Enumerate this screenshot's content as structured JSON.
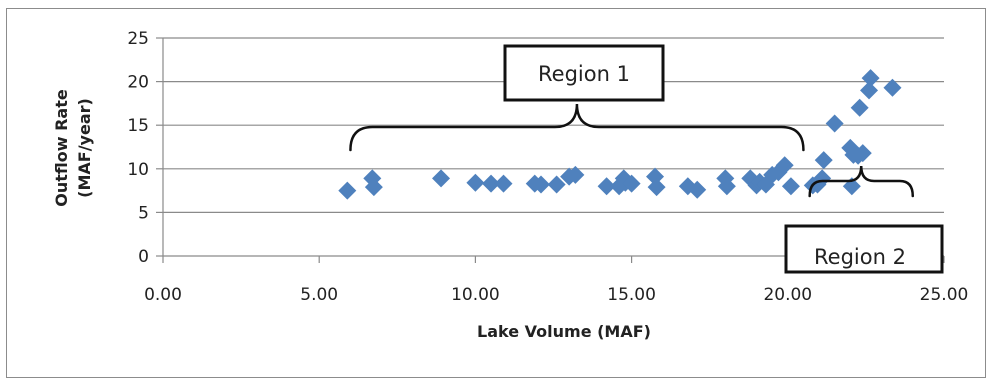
{
  "chart_data": {
    "type": "scatter",
    "title": "",
    "xlabel": "Lake Volume (MAF)",
    "ylabel_lines": [
      "Outflow Rate",
      "(MAF/year)"
    ],
    "xlim": [
      0,
      25
    ],
    "ylim": [
      0,
      25
    ],
    "x_ticks": [
      "0.00",
      "5.00",
      "10.00",
      "15.00",
      "20.00",
      "25.00"
    ],
    "y_ticks": [
      "0",
      "5",
      "10",
      "15",
      "20",
      "25"
    ],
    "grid": "horizontal",
    "marker": "diamond",
    "marker_color": "#4f81bd",
    "points": [
      [
        5.9,
        7.5
      ],
      [
        6.7,
        8.9
      ],
      [
        6.75,
        7.9
      ],
      [
        8.9,
        8.9
      ],
      [
        10.0,
        8.4
      ],
      [
        10.5,
        8.3
      ],
      [
        10.9,
        8.3
      ],
      [
        11.9,
        8.3
      ],
      [
        12.1,
        8.2
      ],
      [
        12.6,
        8.2
      ],
      [
        13.0,
        9.1
      ],
      [
        13.2,
        9.3
      ],
      [
        14.2,
        8.0
      ],
      [
        14.6,
        8.0
      ],
      [
        14.75,
        8.9
      ],
      [
        14.8,
        8.4
      ],
      [
        15.0,
        8.3
      ],
      [
        15.75,
        9.1
      ],
      [
        15.8,
        7.9
      ],
      [
        16.8,
        8.0
      ],
      [
        17.1,
        7.6
      ],
      [
        18.0,
        8.9
      ],
      [
        18.05,
        8.0
      ],
      [
        18.8,
        8.9
      ],
      [
        19.0,
        8.1
      ],
      [
        19.1,
        8.5
      ],
      [
        19.3,
        8.2
      ],
      [
        19.5,
        9.3
      ],
      [
        19.7,
        9.6
      ],
      [
        19.9,
        10.4
      ],
      [
        20.1,
        8.0
      ],
      [
        20.8,
        8.1
      ],
      [
        20.95,
        8.2
      ],
      [
        21.1,
        8.9
      ],
      [
        21.15,
        11.0
      ],
      [
        21.5,
        15.2
      ],
      [
        22.0,
        12.4
      ],
      [
        22.05,
        8.0
      ],
      [
        22.1,
        11.6
      ],
      [
        22.25,
        11.5
      ],
      [
        22.3,
        17.0
      ],
      [
        22.4,
        11.8
      ],
      [
        22.6,
        19.0
      ],
      [
        22.65,
        20.4
      ],
      [
        23.35,
        19.3
      ]
    ],
    "annotations": [
      {
        "label": "Region 1",
        "brace_x": [
          6.0,
          20.5
        ]
      },
      {
        "label": "Region 2",
        "brace_x": [
          20.7,
          24.0
        ]
      }
    ]
  }
}
